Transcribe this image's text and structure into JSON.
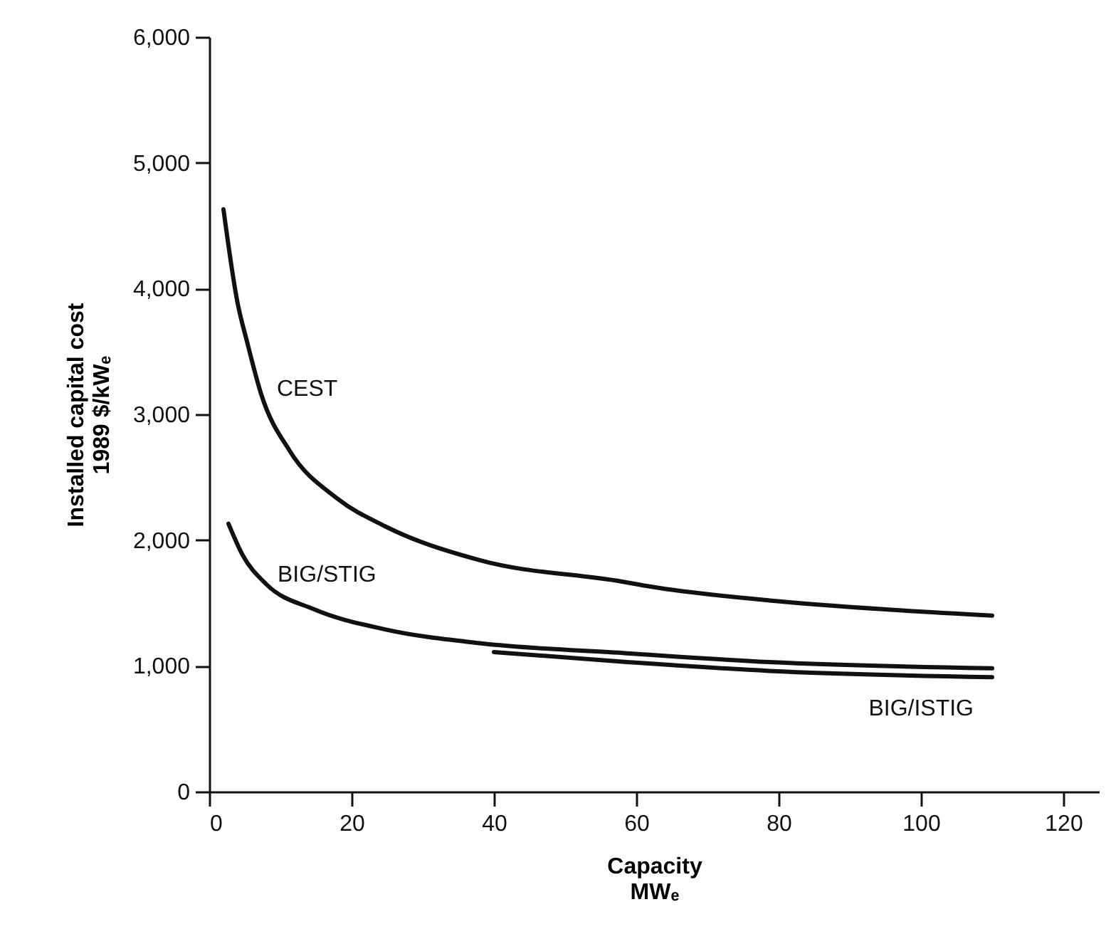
{
  "chart_data": {
    "type": "line",
    "xlabel": "Capacity\nMWₑ",
    "ylabel": "Installed capital cost\n1989 $/kWₑ",
    "xlim": [
      0,
      125
    ],
    "ylim": [
      0,
      6000
    ],
    "xticks": [
      0,
      20,
      40,
      60,
      80,
      100,
      120
    ],
    "yticks": [
      {
        "value": 0,
        "label": "0"
      },
      {
        "value": 1000,
        "label": "1,000"
      },
      {
        "value": 2000,
        "label": "2,000"
      },
      {
        "value": 3000,
        "label": "3,000"
      },
      {
        "value": 4000,
        "label": "4,000"
      },
      {
        "value": 5000,
        "label": "5,000"
      },
      {
        "value": 6000,
        "label": "6,000"
      }
    ],
    "grid": false,
    "marker": "none",
    "line_style": "solid",
    "series": [
      {
        "name": "CEST",
        "color": "#111111",
        "x": [
          2,
          4,
          5.3,
          7.3,
          11.3,
          18,
          24.7,
          38,
          58,
          62,
          78.7,
          94.7,
          110
        ],
        "values": [
          4630,
          3880,
          3580,
          3160,
          2710,
          2330,
          2110,
          1840,
          1670,
          1630,
          1520,
          1450,
          1400
        ]
      },
      {
        "name": "BIG/STIG",
        "color": "#111111",
        "x": [
          2.7,
          4.7,
          8,
          14.7,
          24.7,
          38,
          58.7,
          78.7,
          110
        ],
        "values": [
          2130,
          1880,
          1650,
          1450,
          1290,
          1180,
          1100,
          1030,
          980
        ]
      },
      {
        "name": "BIG/ISTIG",
        "color": "#111111",
        "x": [
          40,
          58.7,
          78.7,
          110
        ],
        "values": [
          1110,
          1030,
          960,
          910
        ]
      }
    ]
  }
}
